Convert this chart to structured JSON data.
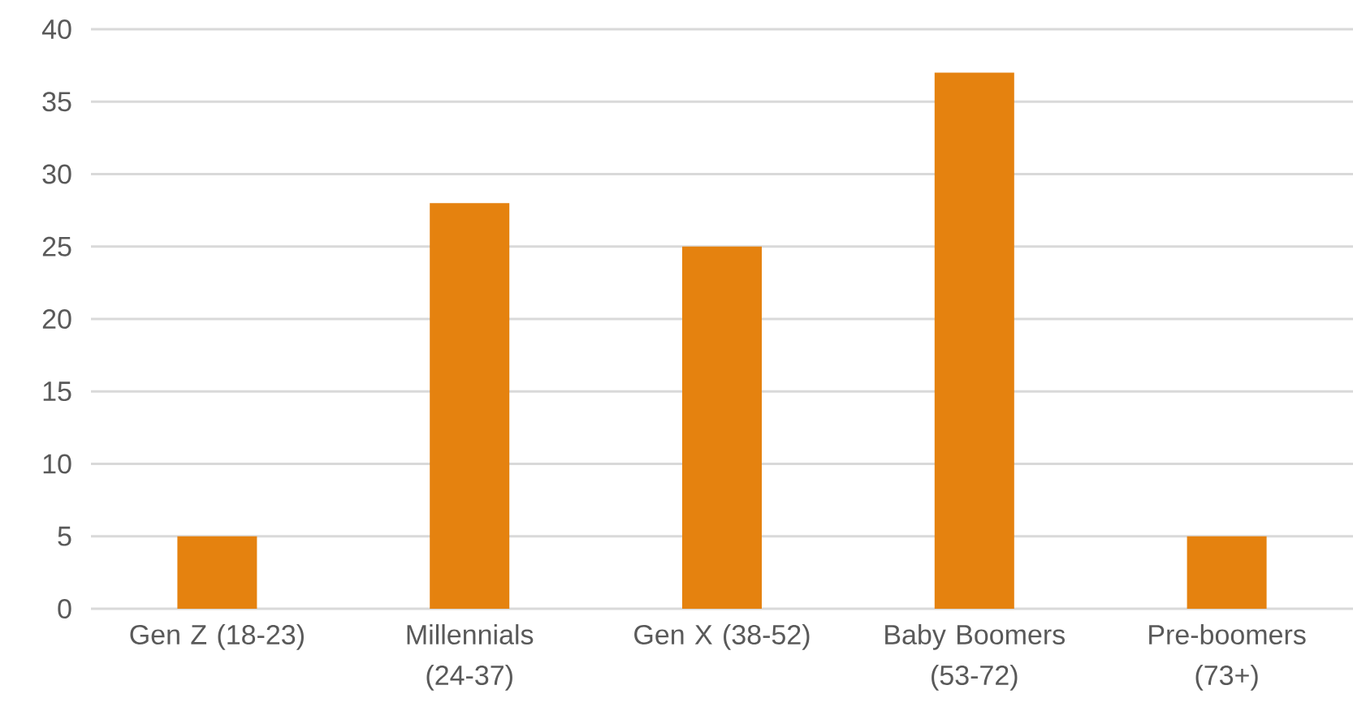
{
  "chart_data": {
    "type": "bar",
    "categories": [
      "Gen Z (18-23)",
      "Millennials (24-37)",
      "Gen X (38-52)",
      "Baby Boomers (53-72)",
      "Pre-boomers (73+)"
    ],
    "values": [
      5,
      28,
      25,
      37,
      5
    ],
    "color": "#e5820f",
    "ylim": [
      0,
      40
    ],
    "yticks": [
      0,
      5,
      10,
      15,
      20,
      25,
      30,
      35,
      40
    ],
    "grid": "y"
  }
}
